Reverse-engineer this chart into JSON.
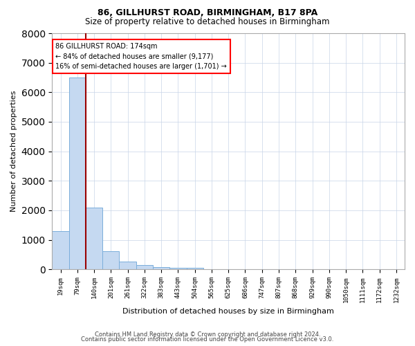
{
  "title1": "86, GILLHURST ROAD, BIRMINGHAM, B17 8PA",
  "title2": "Size of property relative to detached houses in Birmingham",
  "xlabel": "Distribution of detached houses by size in Birmingham",
  "ylabel": "Number of detached properties",
  "footnote1": "Contains HM Land Registry data © Crown copyright and database right 2024.",
  "footnote2": "Contains public sector information licensed under the Open Government Licence v3.0.",
  "categories": [
    "19sqm",
    "79sqm",
    "140sqm",
    "201sqm",
    "261sqm",
    "322sqm",
    "383sqm",
    "443sqm",
    "504sqm",
    "565sqm",
    "625sqm",
    "686sqm",
    "747sqm",
    "807sqm",
    "868sqm",
    "929sqm",
    "990sqm",
    "1050sqm",
    "1111sqm",
    "1172sqm",
    "1232sqm"
  ],
  "bar_values": [
    1300,
    6500,
    2100,
    620,
    270,
    150,
    80,
    50,
    50,
    10,
    5,
    3,
    2,
    1,
    1,
    0,
    0,
    0,
    0,
    0,
    0
  ],
  "bar_color": "#c5d9f1",
  "bar_edge_color": "#7aaedb",
  "property_line_color": "#990000",
  "annotation_line1": "86 GILLHURST ROAD: 174sqm",
  "annotation_line2": "← 84% of detached houses are smaller (9,177)",
  "annotation_line3": "16% of semi-detached houses are larger (1,701) →",
  "ylim": [
    0,
    8000
  ],
  "background_color": "#ffffff",
  "grid_color": "#c8d4e8",
  "property_line_x": 1.5,
  "title1_fontsize": 9,
  "title2_fontsize": 8.5,
  "ylabel_fontsize": 8,
  "xlabel_fontsize": 8,
  "tick_fontsize": 6.5,
  "annot_fontsize": 7
}
